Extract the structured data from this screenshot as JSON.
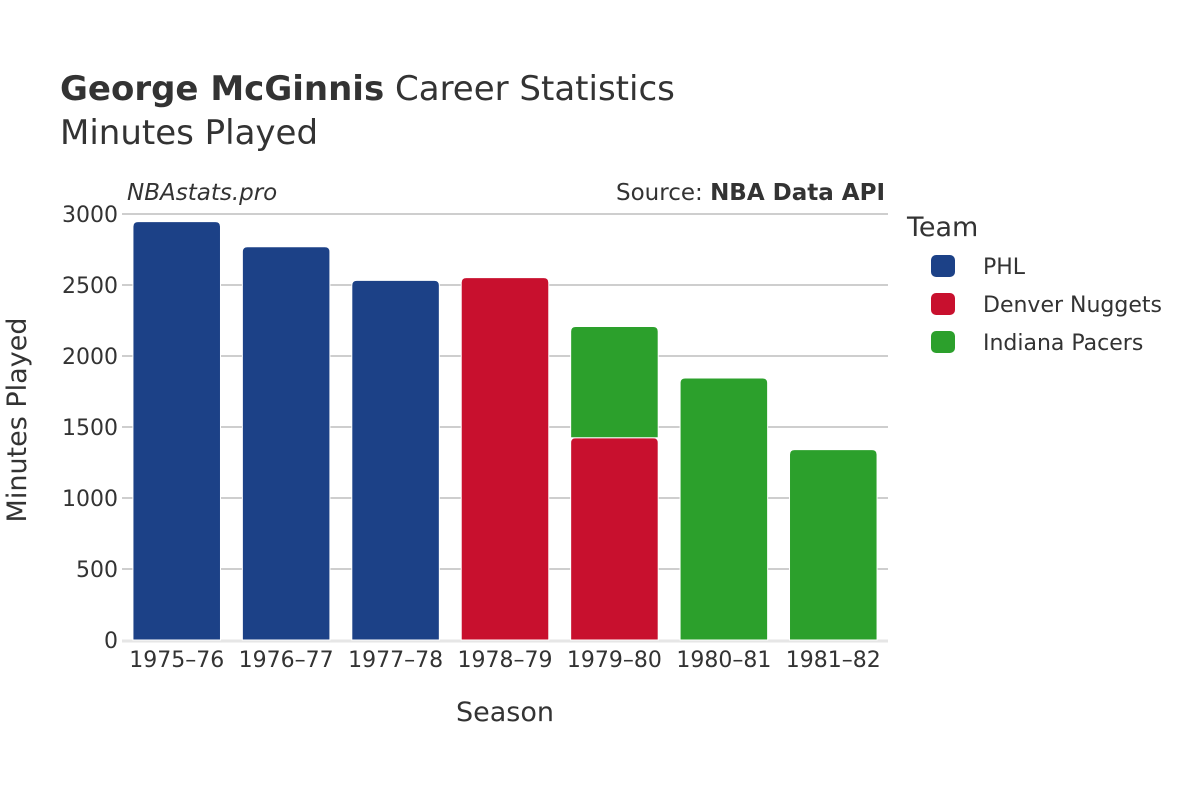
{
  "header": {
    "title_bold": "George McGinnis",
    "title_rest": " Career Statistics",
    "subtitle": "Minutes Played"
  },
  "watermark": "NBAstats.pro",
  "source": {
    "label": "Source: ",
    "name": "NBA Data API"
  },
  "legend": {
    "title": "Team",
    "position": "right"
  },
  "colors": {
    "PHL": "#1c4187",
    "Denver Nuggets": "#c8102e",
    "Indiana Pacers": "#2ca02c",
    "grid": "#9e9e9e",
    "text": "#333333"
  },
  "chart_data": {
    "type": "bar",
    "stacked": true,
    "xlabel": "Season",
    "ylabel": "Minutes Played",
    "ylim": [
      0,
      3000
    ],
    "yticks": [
      0,
      500,
      1000,
      1500,
      2000,
      2500,
      3000
    ],
    "grid": true,
    "categories": [
      "1975–76",
      "1976–77",
      "1977–78",
      "1978–79",
      "1979–80",
      "1980–81",
      "1981–82"
    ],
    "series": [
      {
        "name": "PHL",
        "values": [
          2946,
          2769,
          2533,
          0,
          0,
          0,
          0
        ]
      },
      {
        "name": "Denver Nuggets",
        "values": [
          0,
          0,
          0,
          2552,
          1424,
          0,
          0
        ]
      },
      {
        "name": "Indiana Pacers",
        "values": [
          0,
          0,
          0,
          0,
          784,
          1845,
          1341
        ]
      }
    ]
  }
}
